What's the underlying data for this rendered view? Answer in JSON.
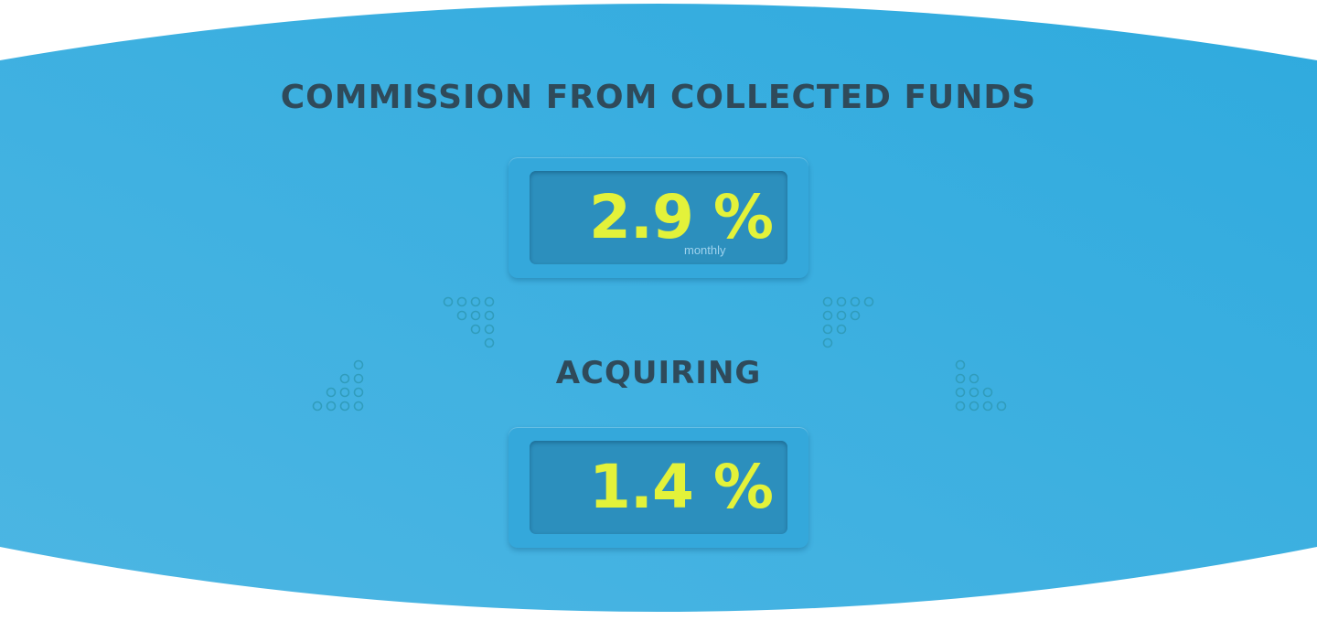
{
  "commission": {
    "heading": "COMMISSION FROM COLLECTED FUNDS",
    "value": "2.9 %",
    "period": "monthly"
  },
  "acquiring": {
    "heading": "ACQUIRING",
    "value": "1.4 %"
  },
  "colors": {
    "banner": "#3fb0e0",
    "heading_text": "#2f4a5a",
    "value_text": "#e3f23a",
    "screen": "#2c8fbd",
    "dot_pattern": "#2f9ab8"
  }
}
